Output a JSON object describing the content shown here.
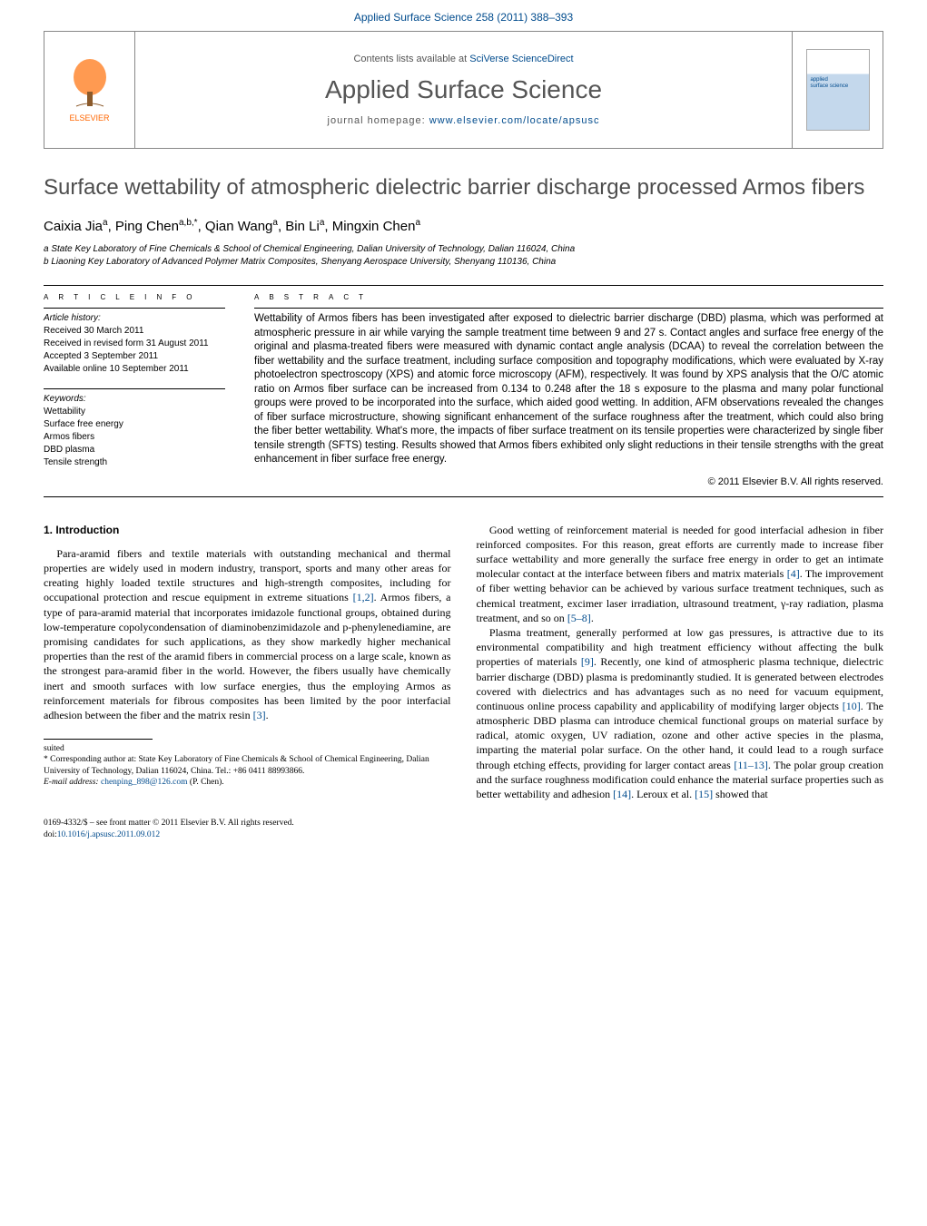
{
  "colors": {
    "link": "#004b8d",
    "title_gray": "#4d4d4d",
    "elsevier_orange": "#ff6600",
    "text": "#000000",
    "muted": "#555555"
  },
  "header_band": "Applied Surface Science 258 (2011) 388–393",
  "journal_header": {
    "contents_prefix": "Contents lists available at ",
    "contents_link": "SciVerse ScienceDirect",
    "journal_name": "Applied Surface Science",
    "homepage_prefix": "journal homepage: ",
    "homepage_url": "www.elsevier.com/locate/apsusc",
    "elsevier_label": "ELSEVIER",
    "cover_line1": "applied",
    "cover_line2": "surface science"
  },
  "title": "Surface wettability of atmospheric dielectric barrier discharge processed Armos fibers",
  "authors_html": "Caixia Jia<sup>a</sup>, Ping Chen<sup>a,b,*</sup>, Qian Wang<sup>a</sup>, Bin Li<sup>a</sup>, Mingxin Chen<sup>a</sup>",
  "affiliations": {
    "a": "a State Key Laboratory of Fine Chemicals & School of Chemical Engineering, Dalian University of Technology, Dalian 116024, China",
    "b": "b Liaoning Key Laboratory of Advanced Polymer Matrix Composites, Shenyang Aerospace University, Shenyang 110136, China"
  },
  "labels": {
    "article_info": "a r t i c l e   i n f o",
    "abstract": "a b s t r a c t",
    "history": "Article history:",
    "keywords": "Keywords:"
  },
  "history": {
    "received": "Received 30 March 2011",
    "revised": "Received in revised form 31 August 2011",
    "accepted": "Accepted 3 September 2011",
    "online": "Available online 10 September 2011"
  },
  "keywords": [
    "Wettability",
    "Surface free energy",
    "Armos fibers",
    "DBD plasma",
    "Tensile strength"
  ],
  "abstract": "Wettability of Armos fibers has been investigated after exposed to dielectric barrier discharge (DBD) plasma, which was performed at atmospheric pressure in air while varying the sample treatment time between 9 and 27 s. Contact angles and surface free energy of the original and plasma-treated fibers were measured with dynamic contact angle analysis (DCAA) to reveal the correlation between the fiber wettability and the surface treatment, including surface composition and topography modifications, which were evaluated by X-ray photoelectron spectroscopy (XPS) and atomic force microscopy (AFM), respectively. It was found by XPS analysis that the O/C atomic ratio on Armos fiber surface can be increased from 0.134 to 0.248 after the 18 s exposure to the plasma and many polar functional groups were proved to be incorporated into the surface, which aided good wetting. In addition, AFM observations revealed the changes of fiber surface microstructure, showing significant enhancement of the surface roughness after the treatment, which could also bring the fiber better wettability. What's more, the impacts of fiber surface treatment on its tensile properties were characterized by single fiber tensile strength (SFTS) testing. Results showed that Armos fibers exhibited only slight reductions in their tensile strengths with the great enhancement in fiber surface free energy.",
  "copyright": "© 2011 Elsevier B.V. All rights reserved.",
  "intro_heading": "1. Introduction",
  "intro_p1_pre": "Para-aramid fibers and textile materials with outstanding mechanical and thermal properties are widely used in modern industry, transport, sports and many other areas for creating highly loaded textile structures and high-strength composites, including for occupational protection and rescue equipment in extreme situations ",
  "intro_p1_ref1": "[1,2]",
  "intro_p1_mid": ". Armos fibers, a type of para-aramid material that incorporates imidazole functional groups, obtained during low-temperature copolycondensation of diaminobenzimidazole and p-phenylenediamine, are promising candidates for such applications, as they show markedly higher mechanical properties than the rest of the aramid fibers in commercial process on a large scale, known as the strongest para-aramid fiber in the world. However, the fibers usually have chemically inert and smooth surfaces with low surface energies, thus the employing Armos as reinforcement materials for fibrous composites has been limited by the poor interfacial adhesion between the fiber and the matrix resin ",
  "intro_p1_ref2": "[3]",
  "intro_p1_post": ".",
  "intro_p2_pre": "Good wetting of reinforcement material is needed for good interfacial adhesion in fiber reinforced composites. For this reason, great efforts are currently made to increase fiber surface wettability and more generally the surface free energy in order to get an intimate molecular contact at the interface between fibers and matrix materials ",
  "intro_p2_ref1": "[4]",
  "intro_p2_mid": ". The improvement of fiber wetting behavior can be achieved by various surface treatment techniques, such as chemical treatment, excimer laser irradiation, ultrasound treatment, γ-ray radiation, plasma treatment, and so on ",
  "intro_p2_ref2": "[5–8]",
  "intro_p2_post": ".",
  "intro_p3_pre": "Plasma treatment, generally performed at low gas pressures, is attractive due to its environmental compatibility and high treatment efficiency without affecting the bulk properties of materials ",
  "intro_p3_ref1": "[9]",
  "intro_p3_mid1": ". Recently, one kind of atmospheric plasma technique, dielectric barrier discharge (DBD) plasma is predominantly studied. It is generated between electrodes covered with dielectrics and has advantages such as no need for vacuum equipment, continuous online process capability and applicability of modifying larger objects ",
  "intro_p3_ref2": "[10]",
  "intro_p3_mid2": ". The atmospheric DBD plasma can introduce chemical functional groups on material surface by radical, atomic oxygen, UV radiation, ozone and other active species in the plasma, imparting the material polar surface. On the other hand, it could lead to a rough surface through etching effects, providing for larger contact areas ",
  "intro_p3_ref3": "[11–13]",
  "intro_p3_mid3": ". The polar group creation and the surface roughness modification could enhance the material surface properties such as better wettability and adhesion ",
  "intro_p3_ref4": "[14]",
  "intro_p3_mid4": ". Leroux et al. ",
  "intro_p3_ref5": "[15]",
  "intro_p3_post": " showed that",
  "footnote": {
    "corr_label": "* Corresponding author at: State Key Laboratory of Fine Chemicals & School of Chemical Engineering, Dalian University of Technology, Dalian 116024, China. Tel.: +86 0411 88993866.",
    "email_label": "E-mail address: ",
    "email": "chenping_898@126.com",
    "email_suffix": " (P. Chen)."
  },
  "bottom": {
    "line1": "0169-4332/$ – see front matter © 2011 Elsevier B.V. All rights reserved.",
    "doi_prefix": "doi:",
    "doi": "10.1016/j.apsusc.2011.09.012"
  }
}
